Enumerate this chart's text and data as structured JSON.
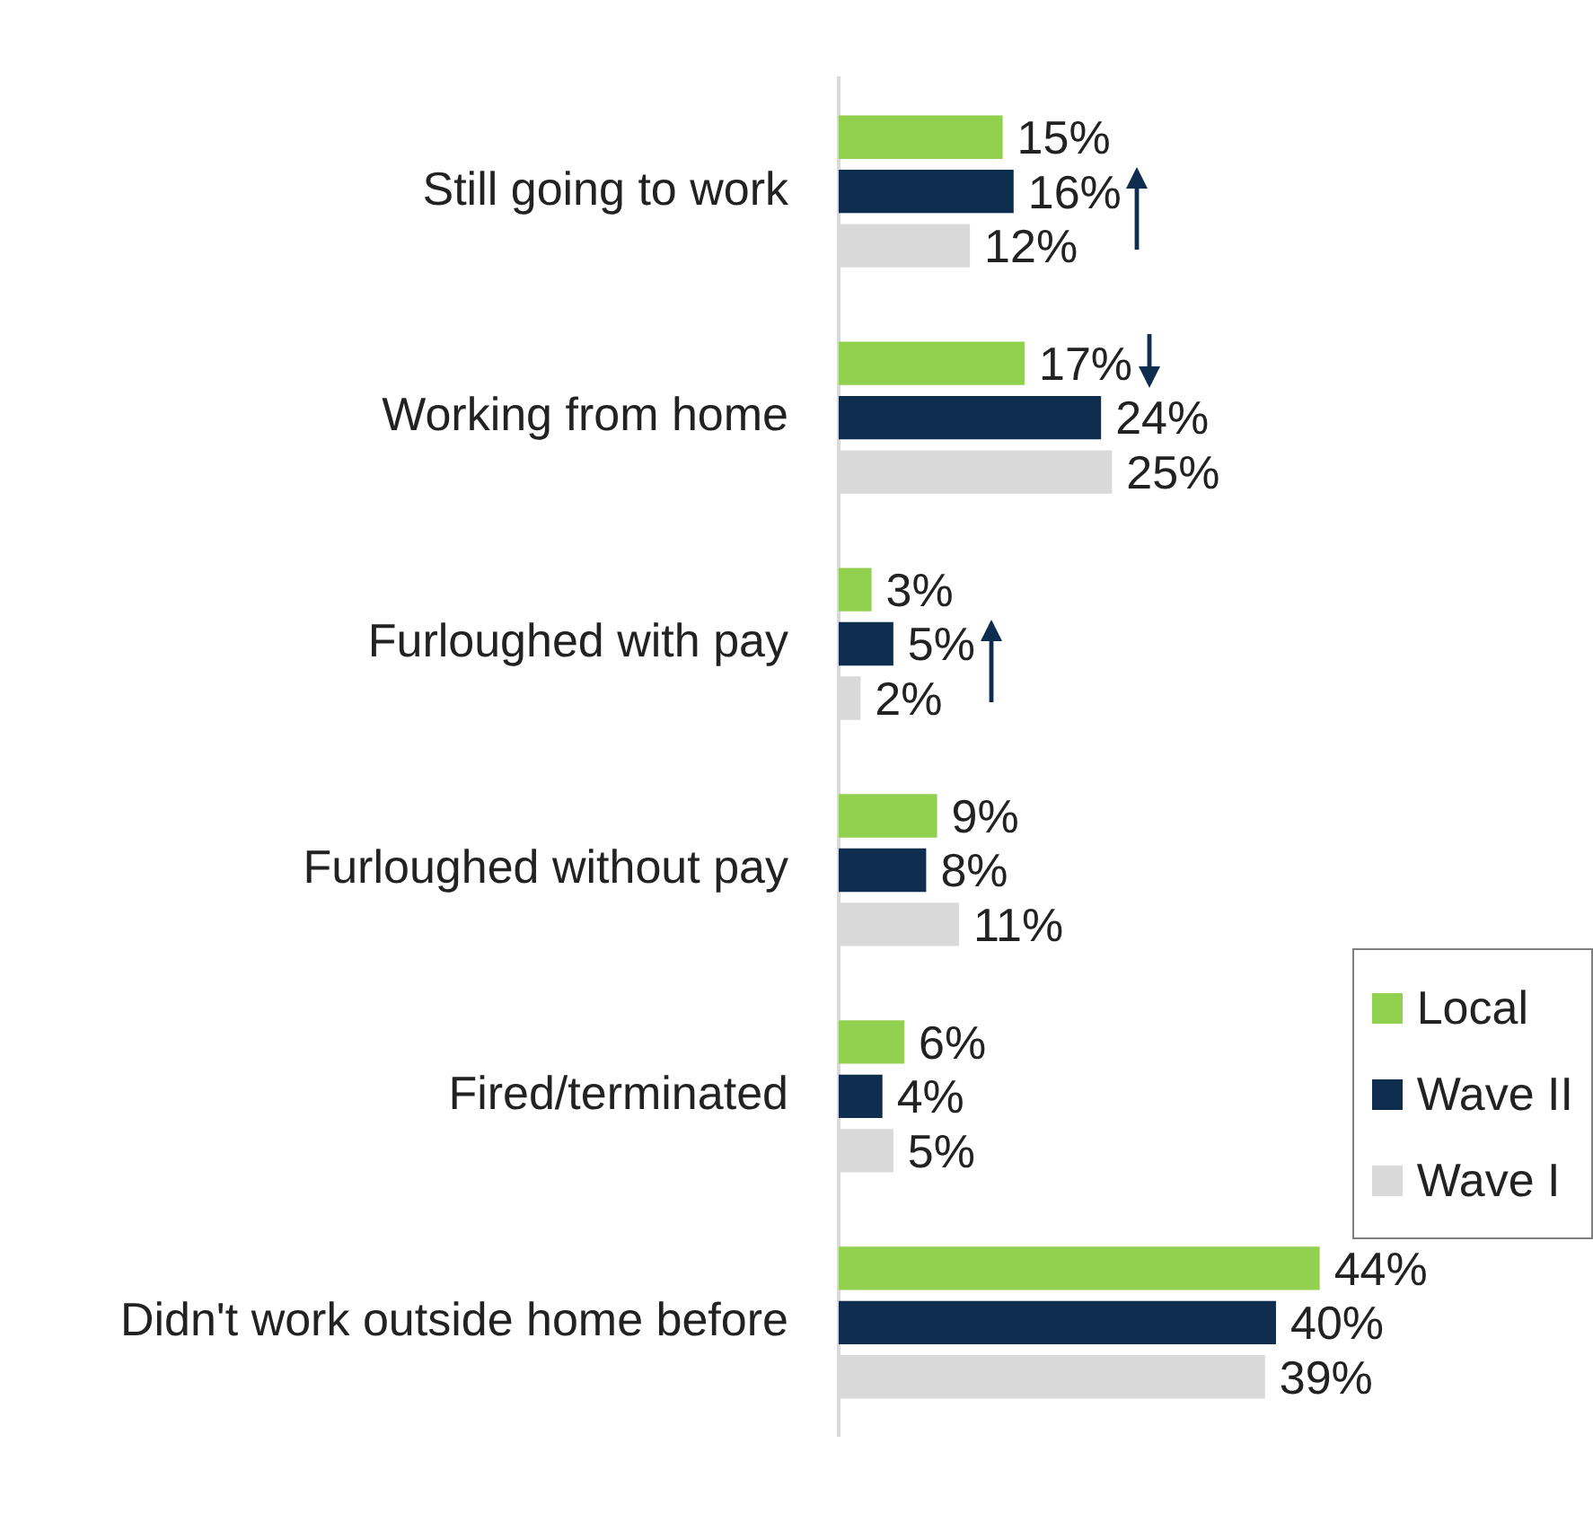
{
  "chart_data": {
    "type": "bar",
    "orientation": "horizontal",
    "categories": [
      "Still going to work",
      "Working from home",
      "Furloughed with pay",
      "Furloughed without pay",
      "Fired/terminated",
      "Didn't work outside home before"
    ],
    "series": [
      {
        "name": "Local",
        "color": "#92d050",
        "values": [
          15,
          17,
          3,
          9,
          6,
          44
        ],
        "value_labels": [
          "15%",
          "17%",
          "3%",
          "9%",
          "6%",
          "44%"
        ]
      },
      {
        "name": "Wave II",
        "color": "#0e2d4f",
        "values": [
          16,
          24,
          5,
          8,
          4,
          40
        ],
        "value_labels": [
          "16%",
          "24%",
          "5%",
          "8%",
          "4%",
          "40%"
        ]
      },
      {
        "name": "Wave I",
        "color": "#d9d9d9",
        "values": [
          12,
          25,
          2,
          11,
          5,
          39
        ],
        "value_labels": [
          "12%",
          "25%",
          "2%",
          "11%",
          "5%",
          "39%"
        ]
      }
    ],
    "xlim": [
      0,
      69
    ],
    "tick_labels": "y",
    "legend": "bottom right"
  }
}
